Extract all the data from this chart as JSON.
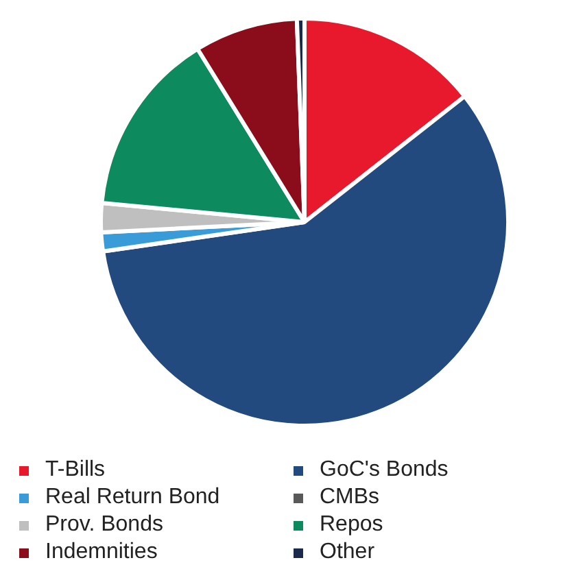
{
  "chart_data": {
    "type": "pie",
    "categories": [
      "T-Bills",
      "GoC's Bonds",
      "Real Return Bond",
      "CMBs",
      "Prov. Bonds",
      "Repos",
      "Indemnities",
      "Other"
    ],
    "values": [
      14.4,
      58.3,
      1.5,
      null,
      2.3,
      14.7,
      8.2,
      0.6
    ],
    "colors": [
      "#e8192c",
      "#224a7e",
      "#3a9bd9",
      "#595959",
      "#bfbfbf",
      "#0e8a5f",
      "#8b0d1b",
      "#1a2a4a"
    ],
    "legend": "bottom"
  }
}
